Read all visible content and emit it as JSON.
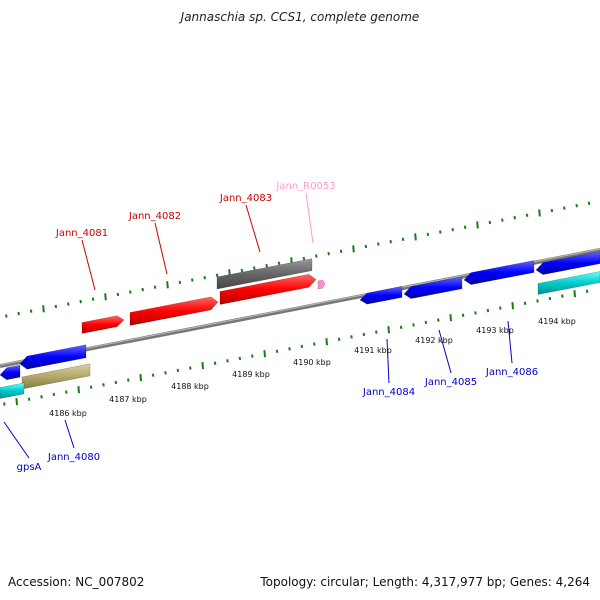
{
  "title": "Jannaschia sp. CCS1, complete genome",
  "accession": "Accession: NC_007802",
  "summary": "Topology: circular; Length: 4,317,977 bp; Genes: 4,264",
  "kbp_labels": [
    "4186 kbp",
    "4187 kbp",
    "4188 kbp",
    "4189 kbp",
    "4190 kbp",
    "4191 kbp",
    "4192 kbp",
    "4193 kbp",
    "4194 kbp"
  ],
  "genes": [
    {
      "name": "Jann_4081",
      "strand": "+",
      "color": "#cc0000"
    },
    {
      "name": "Jann_4082",
      "strand": "+",
      "color": "#cc0000"
    },
    {
      "name": "Jann_4083",
      "strand": "+",
      "color": "#cc0000"
    },
    {
      "name": "Jann_R0053",
      "strand": "+",
      "color": "#ff99cc"
    },
    {
      "name": "Jann_4084",
      "strand": "-",
      "color": "#0000cc"
    },
    {
      "name": "Jann_4085",
      "strand": "-",
      "color": "#0000cc"
    },
    {
      "name": "Jann_4086",
      "strand": "-",
      "color": "#0000cc"
    },
    {
      "name": "Jann_4080",
      "strand": "-",
      "color": "#0000cc"
    },
    {
      "name": "gpsA",
      "strand": "-",
      "color": "#0000cc"
    }
  ],
  "colors": {
    "forward_gene": "#ff1a1a",
    "reverse_gene": "#1a1aff",
    "gray_feature": "#666666",
    "cyan_feature": "#00cccc",
    "olive_feature": "#b3a96a",
    "backbone": "#888888",
    "tick": "#1a7a1a"
  }
}
